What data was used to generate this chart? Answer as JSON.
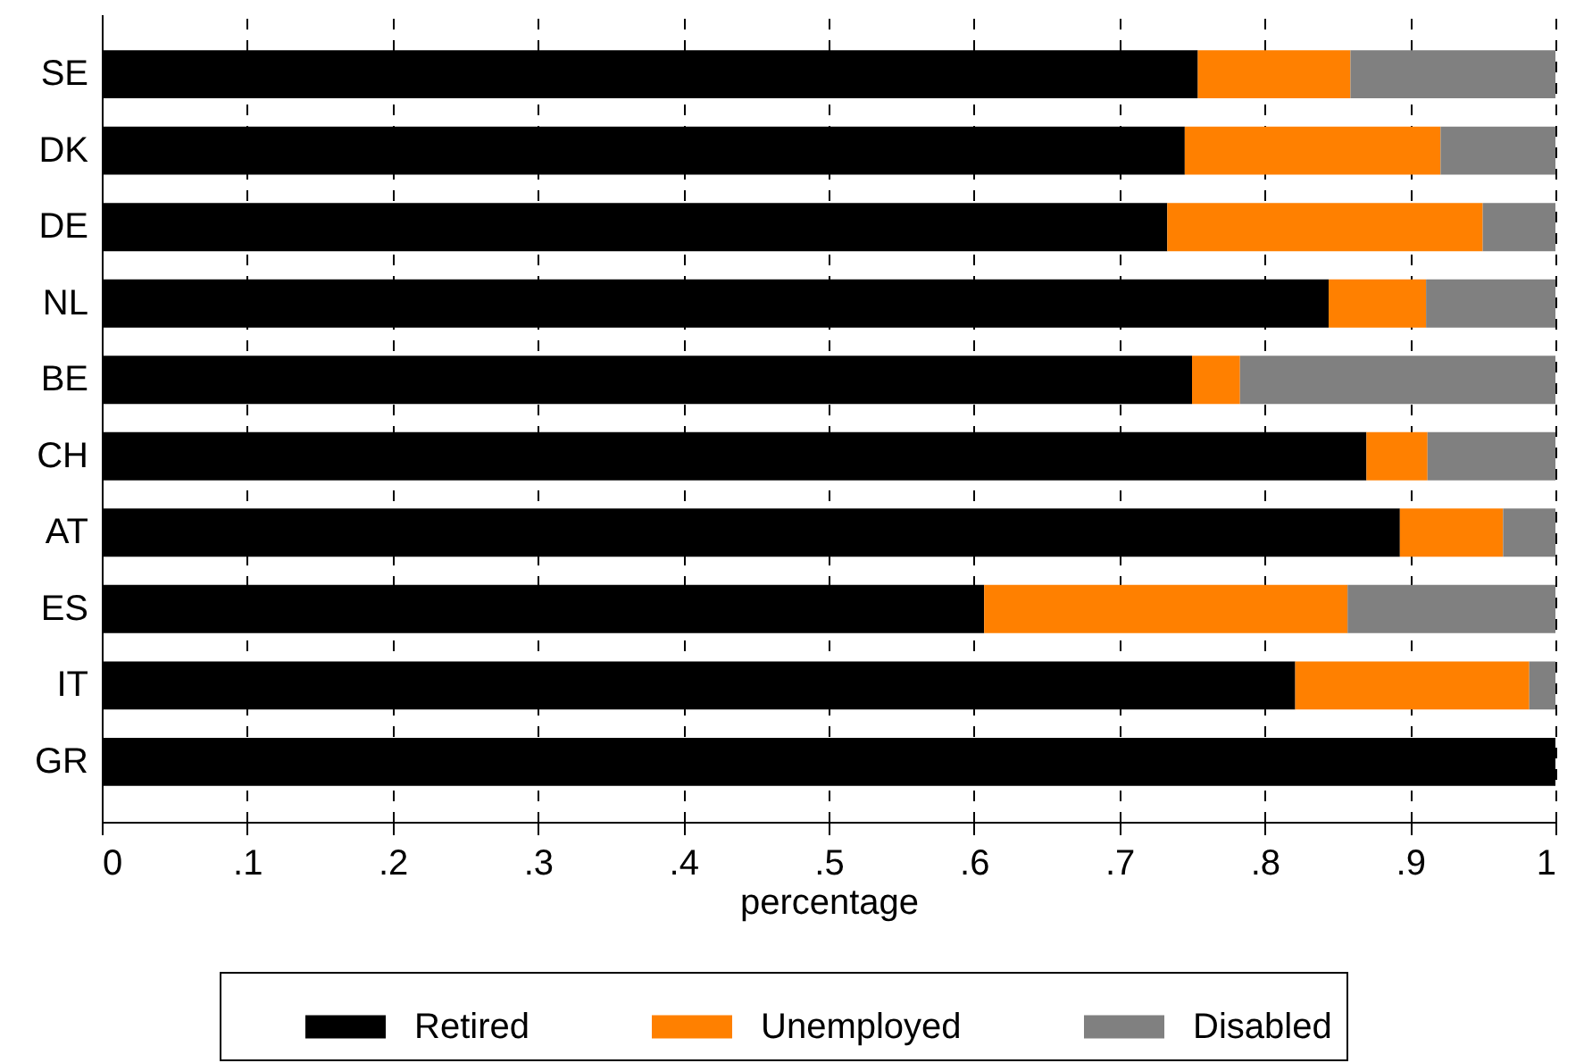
{
  "chart_data": {
    "type": "bar",
    "orientation": "horizontal",
    "stacked": true,
    "xlabel": "percentage",
    "categories": [
      "SE",
      "DK",
      "DE",
      "NL",
      "BE",
      "CH",
      "AT",
      "ES",
      "IT",
      "GR"
    ],
    "series": [
      {
        "name": "Retired",
        "color": "#000000",
        "values": [
          0.754,
          0.745,
          0.733,
          0.844,
          0.75,
          0.87,
          0.893,
          0.607,
          0.821,
          1
        ]
      },
      {
        "name": "Unemployed",
        "color": "#ff8000",
        "values": [
          0.105,
          0.176,
          0.217,
          0.067,
          0.033,
          0.042,
          0.071,
          0.25,
          0.161,
          0
        ]
      },
      {
        "name": "Disabled",
        "color": "#808080",
        "values": [
          0.141,
          0.079,
          0.05,
          0.089,
          0.217,
          0.088,
          0.036,
          0.143,
          0.018,
          0
        ]
      }
    ],
    "xlim": [
      0,
      1
    ],
    "xticks": [
      0,
      {
        "value": 0.1,
        "label": ".1"
      },
      {
        "value": 0.2,
        "label": ".2"
      },
      {
        "value": 0.3,
        "label": ".3"
      },
      {
        "value": 0.4,
        "label": ".4"
      },
      {
        "value": 0.5,
        "label": ".5"
      },
      {
        "value": 0.6,
        "label": ".6"
      },
      {
        "value": 0.7,
        "label": ".7"
      },
      {
        "value": 0.8,
        "label": ".8"
      },
      {
        "value": 0.9,
        "label": ".9"
      },
      1
    ],
    "grid": "x",
    "legend": "bottom"
  }
}
